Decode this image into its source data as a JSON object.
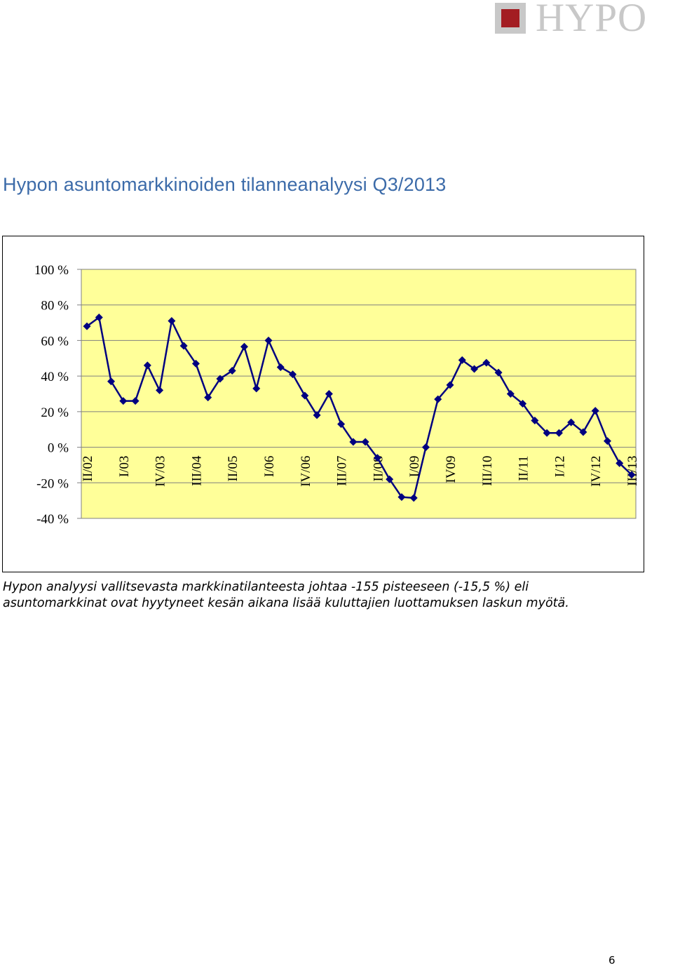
{
  "logo": {
    "text": "HYPO"
  },
  "page_title": "Hypon asuntomarkkinoiden tilanneanalyysi Q3/2013",
  "caption": {
    "line1": "Hypon analyysi vallitsevasta markkinatilanteesta johtaa -155 pisteeseen (-15,5 %) eli",
    "line2": "asuntomarkkinat ovat hyytyneet kesän aikana lisää kuluttajien luottamuksen laskun myötä."
  },
  "page_number": "6",
  "colors": {
    "plot_background": "#ffff99",
    "series_line": "#000080",
    "title": "#3c6ba9",
    "logo_grey": "#c8c8c8",
    "logo_red": "#a31d22"
  },
  "chart_data": {
    "type": "line",
    "title": "",
    "xlabel": "",
    "ylabel": "",
    "ylim": [
      -40,
      100
    ],
    "y_ticks": [
      100,
      80,
      60,
      40,
      20,
      0,
      -20,
      -40
    ],
    "y_tick_labels": [
      "100 %",
      "80 %",
      "60 %",
      "40 %",
      "20 %",
      "0 %",
      "-20 %",
      "-40 %"
    ],
    "grid": true,
    "legend": "none",
    "x_tick_labels": [
      {
        "index": 0,
        "label": "II/02"
      },
      {
        "index": 3,
        "label": "I/03"
      },
      {
        "index": 6,
        "label": "IV/03"
      },
      {
        "index": 9,
        "label": "III/04"
      },
      {
        "index": 12,
        "label": "II/05"
      },
      {
        "index": 15,
        "label": "I/06"
      },
      {
        "index": 18,
        "label": "IV/06"
      },
      {
        "index": 21,
        "label": "III/07"
      },
      {
        "index": 24,
        "label": "II/08"
      },
      {
        "index": 27,
        "label": "I/09"
      },
      {
        "index": 30,
        "label": "IV09"
      },
      {
        "index": 33,
        "label": "III/10"
      },
      {
        "index": 36,
        "label": "II/11"
      },
      {
        "index": 39,
        "label": "I/12"
      },
      {
        "index": 42,
        "label": "IV/12"
      },
      {
        "index": 45,
        "label": "III/13"
      }
    ],
    "series": [
      {
        "values": [
          68,
          73,
          37,
          26,
          26,
          46,
          32,
          71,
          57,
          47,
          28,
          38.5,
          43,
          56.5,
          33,
          60,
          45,
          41,
          29,
          18,
          30,
          13,
          3,
          3,
          -6,
          -18,
          -28,
          -28.5,
          0,
          27,
          35,
          49,
          44,
          47.5,
          42,
          30,
          24.5,
          15,
          8,
          8,
          14,
          8.5,
          20.5,
          3.5,
          -9,
          -15.5
        ]
      }
    ]
  }
}
